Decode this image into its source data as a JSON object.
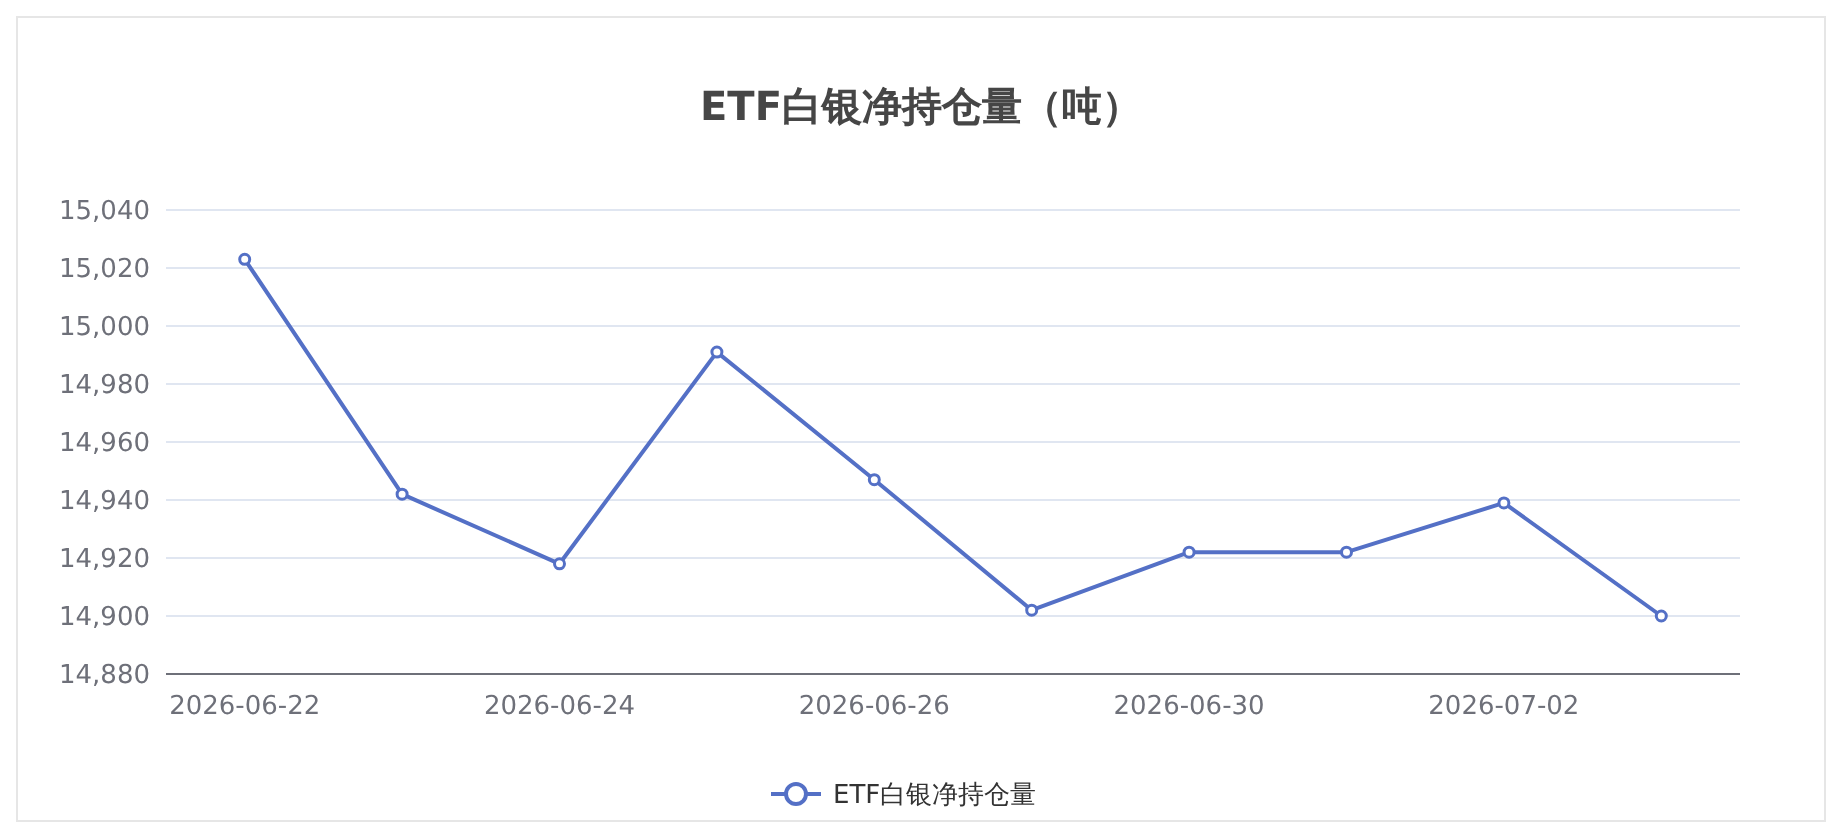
{
  "chart_data": {
    "type": "line",
    "title": "ETF白银净持仓量（吨）",
    "categories": [
      "2026-06-22",
      null,
      "2026-06-24",
      null,
      "2026-06-26",
      null,
      "2026-06-30",
      null,
      "2026-07-02",
      null
    ],
    "series": [
      {
        "name": "ETF白银净持仓量",
        "color": "#5470c6",
        "values": [
          15023,
          14942,
          14918,
          14991,
          14947,
          14902,
          14922,
          14922,
          14939,
          14900
        ]
      }
    ],
    "ylim": [
      14880,
      15040
    ],
    "yticks": [
      {
        "value": 14880,
        "label": "14,880"
      },
      {
        "value": 14900,
        "label": "14,900"
      },
      {
        "value": 14920,
        "label": "14,920"
      },
      {
        "value": 14940,
        "label": "14,940"
      },
      {
        "value": 14960,
        "label": "14,960"
      },
      {
        "value": 14980,
        "label": "14,980"
      },
      {
        "value": 15000,
        "label": "15,000"
      },
      {
        "value": 15020,
        "label": "15,020"
      },
      {
        "value": 15040,
        "label": "15,040"
      }
    ],
    "grid": "y",
    "legend": "bottom",
    "marker": "circle",
    "line_style": "solid"
  }
}
